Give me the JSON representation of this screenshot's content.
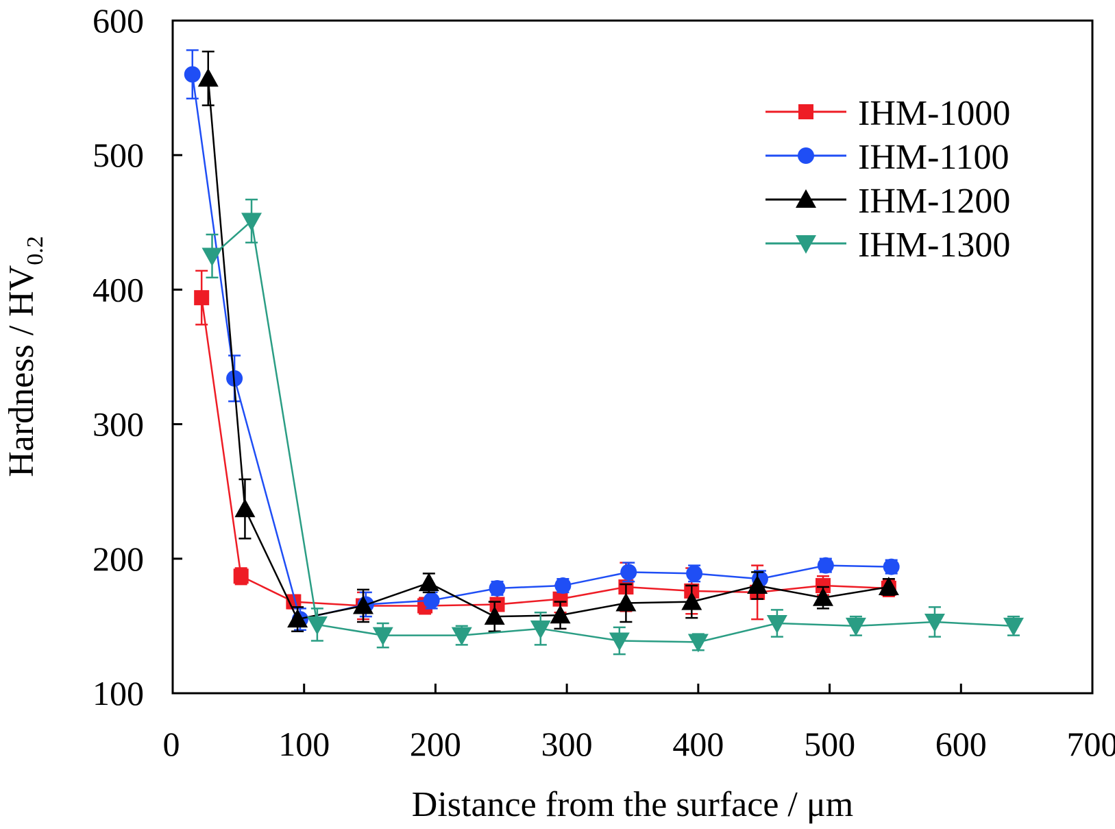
{
  "chart_data": {
    "type": "line",
    "title": "",
    "xlabel": "Distance from the surface / μm",
    "ylabel": {
      "main": "Hardness / HV",
      "subscript": "0.2"
    },
    "xlim": [
      0,
      700
    ],
    "ylim": [
      100,
      600
    ],
    "xticks": [
      0,
      100,
      200,
      300,
      400,
      500,
      600,
      700
    ],
    "yticks": [
      100,
      200,
      300,
      400,
      500,
      600
    ],
    "grid": false,
    "legend_position": "top-right",
    "series": [
      {
        "name": "IHM-1000",
        "color": "#ee1c25",
        "marker": "square",
        "points": [
          {
            "x": 22,
            "y": 394,
            "err": 20
          },
          {
            "x": 52,
            "y": 187,
            "err": 6
          },
          {
            "x": 92,
            "y": 168,
            "err": 5
          },
          {
            "x": 145,
            "y": 165,
            "err": 10
          },
          {
            "x": 192,
            "y": 165,
            "err": 6
          },
          {
            "x": 247,
            "y": 166,
            "err": 14
          },
          {
            "x": 295,
            "y": 170,
            "err": 10
          },
          {
            "x": 345,
            "y": 179,
            "err": 18
          },
          {
            "x": 395,
            "y": 176,
            "err": 17
          },
          {
            "x": 445,
            "y": 175,
            "err": 20
          },
          {
            "x": 495,
            "y": 180,
            "err": 7
          },
          {
            "x": 545,
            "y": 178,
            "err": 6
          }
        ]
      },
      {
        "name": "IHM-1100",
        "color": "#1f4ef5",
        "marker": "circle",
        "points": [
          {
            "x": 15,
            "y": 560,
            "err": 18
          },
          {
            "x": 47,
            "y": 334,
            "err": 17
          },
          {
            "x": 97,
            "y": 155,
            "err": 8
          },
          {
            "x": 147,
            "y": 166,
            "err": 9
          },
          {
            "x": 197,
            "y": 169,
            "err": 6
          },
          {
            "x": 247,
            "y": 178,
            "err": 5
          },
          {
            "x": 297,
            "y": 180,
            "err": 5
          },
          {
            "x": 347,
            "y": 190,
            "err": 7
          },
          {
            "x": 397,
            "y": 189,
            "err": 6
          },
          {
            "x": 447,
            "y": 185,
            "err": 6
          },
          {
            "x": 497,
            "y": 195,
            "err": 5
          },
          {
            "x": 547,
            "y": 194,
            "err": 5
          }
        ]
      },
      {
        "name": "IHM-1200",
        "color": "#000000",
        "marker": "triangle-up",
        "points": [
          {
            "x": 27,
            "y": 557,
            "err": 20
          },
          {
            "x": 55,
            "y": 237,
            "err": 22
          },
          {
            "x": 95,
            "y": 155,
            "err": 9
          },
          {
            "x": 145,
            "y": 165,
            "err": 12
          },
          {
            "x": 195,
            "y": 182,
            "err": 7
          },
          {
            "x": 245,
            "y": 157,
            "err": 11
          },
          {
            "x": 295,
            "y": 158,
            "err": 10
          },
          {
            "x": 345,
            "y": 167,
            "err": 14
          },
          {
            "x": 395,
            "y": 168,
            "err": 12
          },
          {
            "x": 445,
            "y": 180,
            "err": 10
          },
          {
            "x": 495,
            "y": 171,
            "err": 8
          },
          {
            "x": 545,
            "y": 179,
            "err": 6
          }
        ]
      },
      {
        "name": "IHM-1300",
        "color": "#2a9d84",
        "marker": "triangle-down",
        "points": [
          {
            "x": 30,
            "y": 425,
            "err": 16
          },
          {
            "x": 60,
            "y": 451,
            "err": 16
          },
          {
            "x": 110,
            "y": 151,
            "err": 12
          },
          {
            "x": 160,
            "y": 143,
            "err": 9
          },
          {
            "x": 220,
            "y": 143,
            "err": 7
          },
          {
            "x": 280,
            "y": 148,
            "err": 12
          },
          {
            "x": 340,
            "y": 139,
            "err": 10
          },
          {
            "x": 400,
            "y": 138,
            "err": 6
          },
          {
            "x": 460,
            "y": 152,
            "err": 10
          },
          {
            "x": 520,
            "y": 150,
            "err": 7
          },
          {
            "x": 580,
            "y": 153,
            "err": 11
          },
          {
            "x": 640,
            "y": 150,
            "err": 7
          }
        ]
      }
    ]
  }
}
